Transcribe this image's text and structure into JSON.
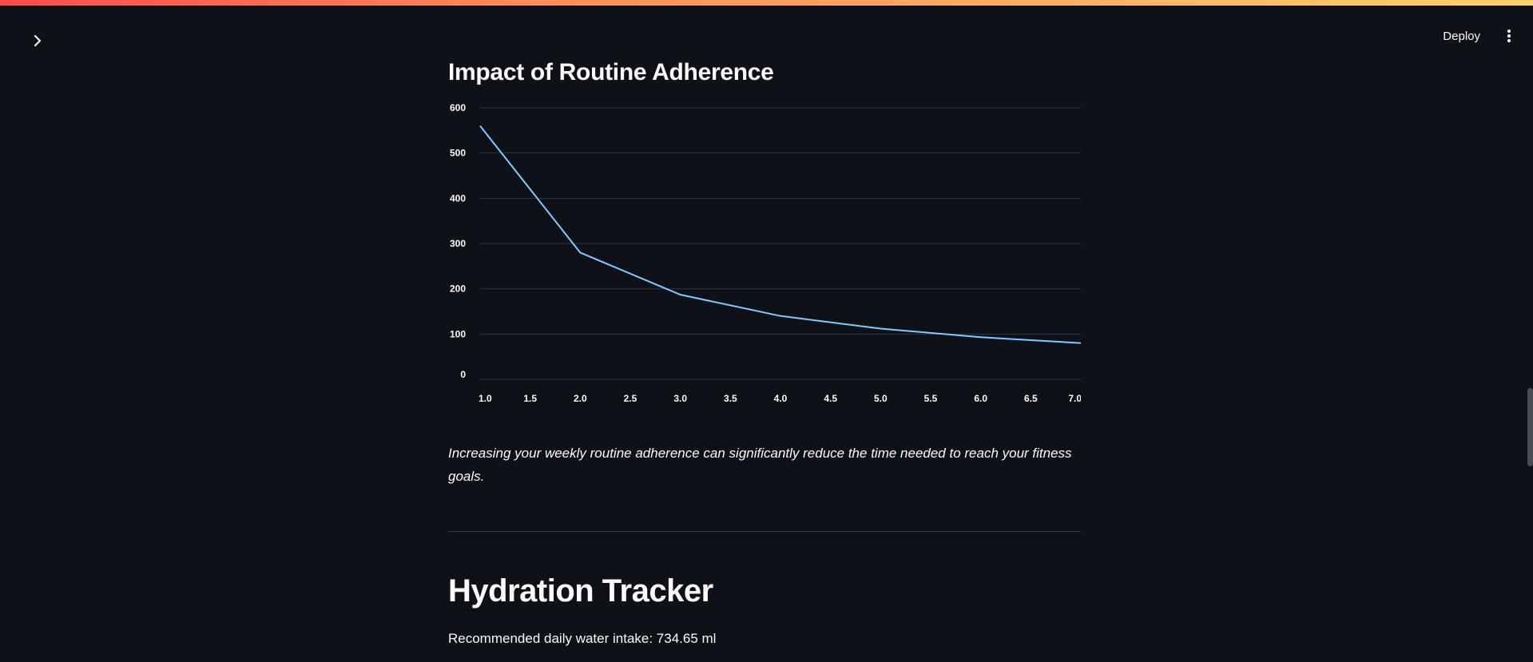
{
  "header": {
    "deploy_label": "Deploy"
  },
  "icons": {
    "sidebar_toggle": "chevron-right-icon",
    "menu": "vertical-dots-icon"
  },
  "main": {
    "chart_title": "Impact of Routine Adherence",
    "caption": "Increasing your weekly routine adherence can significantly reduce the time needed to reach your fitness goals.",
    "hydration": {
      "title": "Hydration Tracker",
      "water_intake_text": "Recommended daily water intake: 734.65 ml"
    }
  },
  "colors": {
    "background": "#0e1117",
    "line": "#83c9ff",
    "grid": "#31333f",
    "text": "#fafafa"
  },
  "chart_data": {
    "type": "line",
    "title": "",
    "xlabel": "",
    "ylabel": "",
    "x": [
      1,
      2,
      3,
      4,
      5,
      6,
      7
    ],
    "series": [
      {
        "values": [
          560,
          280,
          187,
          140,
          112,
          93,
          80
        ]
      }
    ],
    "xlim": [
      1,
      7
    ],
    "ylim": [
      0,
      600
    ],
    "x_ticks": [
      "1.0",
      "1.5",
      "2.0",
      "2.5",
      "3.0",
      "3.5",
      "4.0",
      "4.5",
      "5.0",
      "5.5",
      "6.0",
      "6.5",
      "7.0"
    ],
    "y_ticks": [
      "0",
      "100",
      "200",
      "300",
      "400",
      "500",
      "600"
    ],
    "grid": true
  }
}
